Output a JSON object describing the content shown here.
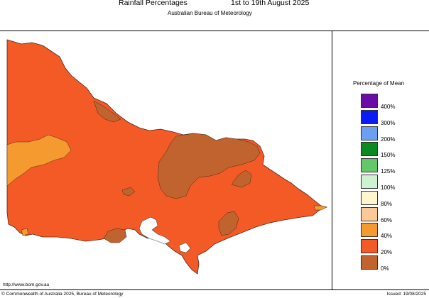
{
  "header": {
    "title": "Rainfall Percentages",
    "dates": "1st to 19th August 2025",
    "subtitle": "Australian Bureau of Meteorology"
  },
  "legend": {
    "title": "Percentage of Mean",
    "items": [
      {
        "label": "400%",
        "color": "#6a0da6"
      },
      {
        "label": "300%",
        "color": "#0a1cf2"
      },
      {
        "label": "200%",
        "color": "#6a9ff2"
      },
      {
        "label": "150%",
        "color": "#0a8a22"
      },
      {
        "label": "125%",
        "color": "#62c86a"
      },
      {
        "label": "100%",
        "color": "#cdf2d2"
      },
      {
        "label": "80%",
        "color": "#fdf6cf"
      },
      {
        "label": "60%",
        "color": "#fbc996"
      },
      {
        "label": "40%",
        "color": "#f59a2f"
      },
      {
        "label": "20%",
        "color": "#f45a26"
      },
      {
        "label": "0%",
        "color": "#c0632e"
      }
    ]
  },
  "map": {
    "region_colors": {
      "base": "#f45a26",
      "dry": "#c0632e",
      "moderate": "#f59a2f"
    }
  },
  "footer": {
    "url": "http://www.bom.gov.au",
    "copyright": "© Commonwealth of Australia 2025, Bureau of Meteorology",
    "issued": "Issued: 19/08/2025"
  }
}
